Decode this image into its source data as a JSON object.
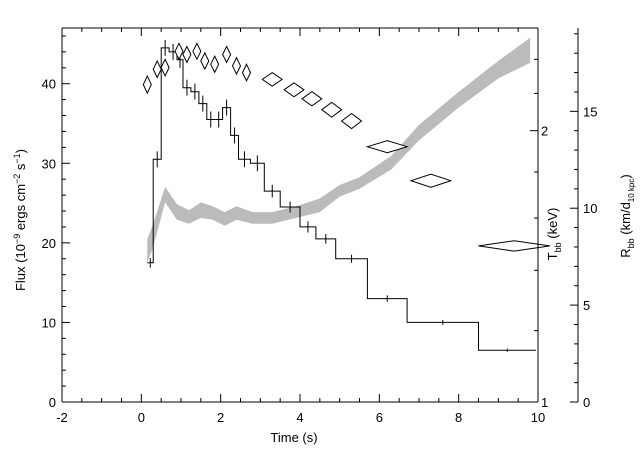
{
  "chart_data": {
    "type": "line",
    "xlabel": "Time (s)",
    "ylabel_left_parts": [
      "Flux (10",
      "−9",
      " ergs cm",
      "−2",
      " s",
      "−1",
      ")"
    ],
    "ylabel_right1_parts": [
      "T",
      "bb",
      " (keV)"
    ],
    "ylabel_right2_parts": [
      "R",
      "bb",
      " (km/d",
      "10 kpc",
      ")"
    ],
    "xlim": [
      -2,
      10
    ],
    "ylim_left": [
      0,
      47
    ],
    "xticks": [
      -2,
      0,
      2,
      4,
      6,
      8,
      10
    ],
    "yticks_left": [
      0,
      10,
      20,
      30,
      40
    ],
    "yticks_temp": [
      1,
      2
    ],
    "temp_range": [
      1,
      2.6
    ],
    "yticks_radius": [
      0,
      5,
      10,
      15
    ],
    "radius_range": [
      0,
      19.3
    ],
    "flux_steps": [
      {
        "x0": 0.15,
        "x1": 0.3,
        "y": 17.5,
        "err": 0.6
      },
      {
        "x0": 0.3,
        "x1": 0.5,
        "y": 30.5,
        "err": 1.0
      },
      {
        "x0": 0.5,
        "x1": 0.7,
        "y": 44.5,
        "err": 1.0
      },
      {
        "x0": 0.7,
        "x1": 0.9,
        "y": 44.0,
        "err": 1.0
      },
      {
        "x0": 0.9,
        "x1": 1.05,
        "y": 43.0,
        "err": 1.0
      },
      {
        "x0": 1.05,
        "x1": 1.25,
        "y": 39.5,
        "err": 1.0
      },
      {
        "x0": 1.25,
        "x1": 1.45,
        "y": 39.0,
        "err": 1.0
      },
      {
        "x0": 1.45,
        "x1": 1.65,
        "y": 37.5,
        "err": 1.0
      },
      {
        "x0": 1.65,
        "x1": 1.85,
        "y": 35.5,
        "err": 1.0
      },
      {
        "x0": 1.85,
        "x1": 2.05,
        "y": 35.5,
        "err": 1.0
      },
      {
        "x0": 2.05,
        "x1": 2.25,
        "y": 37.0,
        "err": 1.0
      },
      {
        "x0": 2.25,
        "x1": 2.45,
        "y": 33.5,
        "err": 1.0
      },
      {
        "x0": 2.45,
        "x1": 2.75,
        "y": 30.5,
        "err": 1.0
      },
      {
        "x0": 2.75,
        "x1": 3.1,
        "y": 30.0,
        "err": 1.0
      },
      {
        "x0": 3.1,
        "x1": 3.5,
        "y": 26.5,
        "err": 0.8
      },
      {
        "x0": 3.5,
        "x1": 4.0,
        "y": 24.5,
        "err": 0.7
      },
      {
        "x0": 4.0,
        "x1": 4.4,
        "y": 22.0,
        "err": 0.7
      },
      {
        "x0": 4.4,
        "x1": 4.9,
        "y": 20.5,
        "err": 0.6
      },
      {
        "x0": 4.9,
        "x1": 5.7,
        "y": 18.0,
        "err": 0.5
      },
      {
        "x0": 5.7,
        "x1": 6.7,
        "y": 13.0,
        "err": 0.4
      },
      {
        "x0": 6.7,
        "x1": 8.5,
        "y": 10.0,
        "err": 0.3
      },
      {
        "x0": 8.5,
        "x1": 9.95,
        "y": 6.5,
        "err": 0.2
      }
    ],
    "temperature_points": [
      {
        "x": 0.15,
        "y": 2.25,
        "xerr": 0.1,
        "yerr": 0.05
      },
      {
        "x": 0.4,
        "y": 2.34,
        "xerr": 0.1,
        "yerr": 0.05
      },
      {
        "x": 0.6,
        "y": 2.35,
        "xerr": 0.1,
        "yerr": 0.05
      },
      {
        "x": 0.95,
        "y": 2.45,
        "xerr": 0.1,
        "yerr": 0.05
      },
      {
        "x": 1.15,
        "y": 2.43,
        "xerr": 0.1,
        "yerr": 0.05
      },
      {
        "x": 1.4,
        "y": 2.45,
        "xerr": 0.1,
        "yerr": 0.05
      },
      {
        "x": 1.6,
        "y": 2.39,
        "xerr": 0.1,
        "yerr": 0.05
      },
      {
        "x": 1.85,
        "y": 2.37,
        "xerr": 0.1,
        "yerr": 0.05
      },
      {
        "x": 2.15,
        "y": 2.43,
        "xerr": 0.1,
        "yerr": 0.05
      },
      {
        "x": 2.4,
        "y": 2.36,
        "xerr": 0.1,
        "yerr": 0.05
      },
      {
        "x": 2.65,
        "y": 2.32,
        "xerr": 0.1,
        "yerr": 0.05
      },
      {
        "x": 3.3,
        "y": 2.28,
        "xerr": 0.25,
        "yerr": 0.04
      },
      {
        "x": 3.85,
        "y": 2.22,
        "xerr": 0.25,
        "yerr": 0.04
      },
      {
        "x": 4.3,
        "y": 2.17,
        "xerr": 0.25,
        "yerr": 0.04
      },
      {
        "x": 4.8,
        "y": 2.11,
        "xerr": 0.25,
        "yerr": 0.04
      },
      {
        "x": 5.3,
        "y": 2.05,
        "xerr": 0.25,
        "yerr": 0.04
      },
      {
        "x": 6.2,
        "y": 1.92,
        "xerr": 0.5,
        "yerr": 0.03
      },
      {
        "x": 7.3,
        "y": 1.76,
        "xerr": 0.5,
        "yerr": 0.03
      },
      {
        "x": 9.4,
        "y": 1.49,
        "xerr": 0.9,
        "yerr": 0.02
      }
    ],
    "radius_band": [
      {
        "x": 0.15,
        "lo": 7.2,
        "hi": 8.4
      },
      {
        "x": 0.3,
        "lo": 8.0,
        "hi": 9.2
      },
      {
        "x": 0.6,
        "lo": 10.3,
        "hi": 11.1
      },
      {
        "x": 0.9,
        "lo": 9.4,
        "hi": 10.2
      },
      {
        "x": 1.2,
        "lo": 9.2,
        "hi": 9.9
      },
      {
        "x": 1.5,
        "lo": 9.5,
        "hi": 10.3
      },
      {
        "x": 1.8,
        "lo": 9.4,
        "hi": 10.1
      },
      {
        "x": 2.1,
        "lo": 9.1,
        "hi": 9.8
      },
      {
        "x": 2.4,
        "lo": 9.4,
        "hi": 10.1
      },
      {
        "x": 2.8,
        "lo": 9.2,
        "hi": 9.8
      },
      {
        "x": 3.3,
        "lo": 9.2,
        "hi": 9.8
      },
      {
        "x": 3.9,
        "lo": 9.5,
        "hi": 10.1
      },
      {
        "x": 4.5,
        "lo": 9.8,
        "hi": 10.5
      },
      {
        "x": 5.0,
        "lo": 10.6,
        "hi": 11.2
      },
      {
        "x": 5.5,
        "lo": 11.0,
        "hi": 11.6
      },
      {
        "x": 6.3,
        "lo": 12.0,
        "hi": 12.7
      },
      {
        "x": 7.0,
        "lo": 13.5,
        "hi": 14.3
      },
      {
        "x": 8.0,
        "lo": 15.2,
        "hi": 16.0
      },
      {
        "x": 9.0,
        "lo": 16.7,
        "hi": 17.6
      },
      {
        "x": 9.8,
        "lo": 17.5,
        "hi": 18.8
      }
    ],
    "colors": {
      "axes": "#000000",
      "flux": "#000000",
      "temperature": "#000000",
      "radius_band": "#bbbbbb"
    }
  }
}
